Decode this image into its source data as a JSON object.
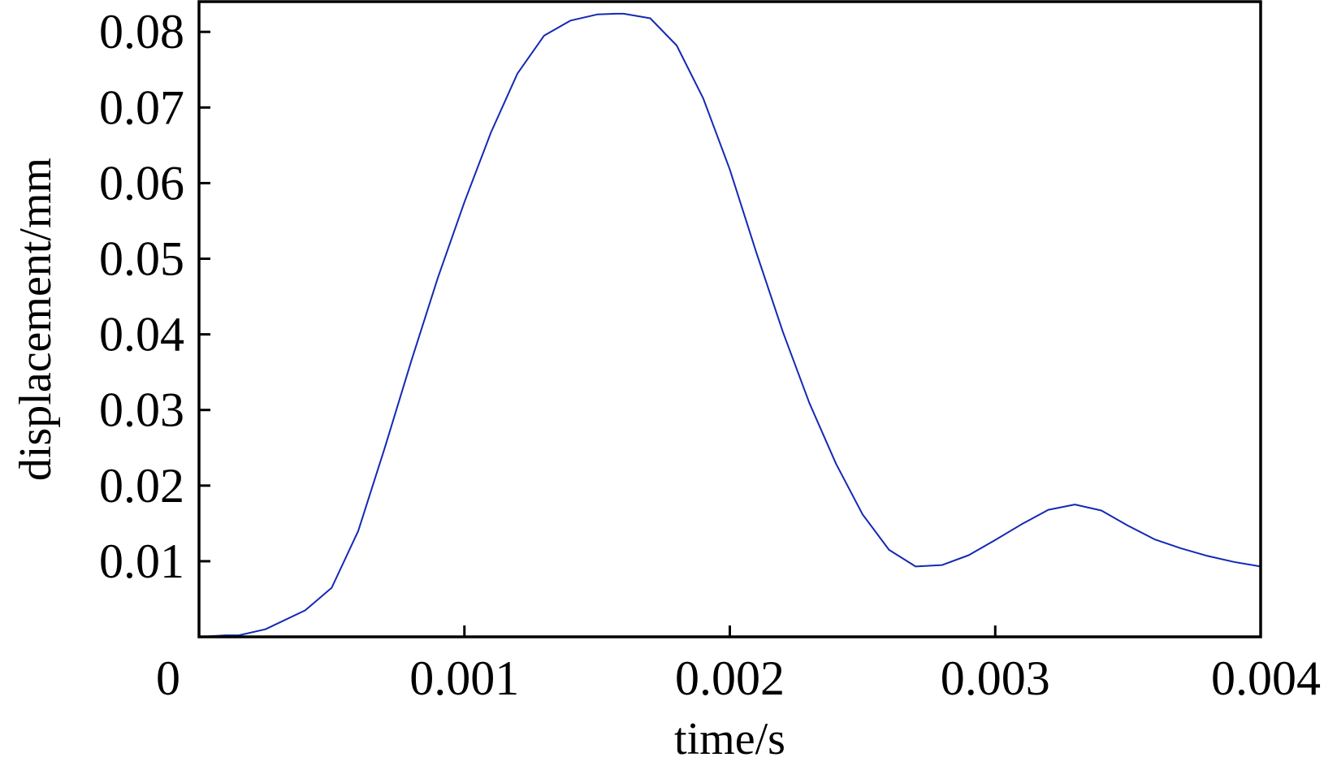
{
  "chart_data": {
    "type": "line",
    "title": "",
    "xlabel": "time/s",
    "ylabel": "displacement/mm",
    "xlim": [
      0,
      0.004
    ],
    "ylim": [
      0,
      0.084
    ],
    "grid": false,
    "xticks": [
      0.001,
      0.002,
      0.003,
      0.004
    ],
    "yticks": [
      0.01,
      0.02,
      0.03,
      0.04,
      0.05,
      0.06,
      0.07,
      0.08
    ],
    "x_origin_label": "0",
    "xtick_labels": [
      "0.001",
      "0.002",
      "0.003",
      "0.004"
    ],
    "ytick_labels": [
      "0.01",
      "0.02",
      "0.03",
      "0.04",
      "0.05",
      "0.06",
      "0.07",
      "0.08"
    ],
    "series": [
      {
        "color": "#1428b4",
        "x": [
          0,
          0.0001,
          0.00015,
          0.00025,
          0.0004,
          0.0005,
          0.0006,
          0.0007,
          0.0008,
          0.0009,
          0.001,
          0.0011,
          0.0012,
          0.0013,
          0.0014,
          0.0015,
          0.00157,
          0.0016,
          0.0017,
          0.0018,
          0.0019,
          0.002,
          0.0021,
          0.0022,
          0.0023,
          0.0024,
          0.0025,
          0.0026,
          0.0027,
          0.0028,
          0.0029,
          0.003,
          0.0031,
          0.0032,
          0.0033,
          0.0034,
          0.0035,
          0.0036,
          0.0037,
          0.0038,
          0.0039,
          0.004
        ],
        "y": [
          0,
          0.0002,
          0.0002,
          0.001,
          0.0035,
          0.0065,
          0.014,
          0.025,
          0.0365,
          0.0475,
          0.0575,
          0.0667,
          0.0745,
          0.0795,
          0.0815,
          0.0823,
          0.0824,
          0.0824,
          0.0818,
          0.0782,
          0.0712,
          0.0618,
          0.0508,
          0.0403,
          0.0309,
          0.0229,
          0.0162,
          0.0115,
          0.0093,
          0.0095,
          0.0108,
          0.0128,
          0.0149,
          0.0168,
          0.0175,
          0.0167,
          0.0147,
          0.0129,
          0.0117,
          0.0107,
          0.0099,
          0.0093
        ]
      }
    ]
  }
}
